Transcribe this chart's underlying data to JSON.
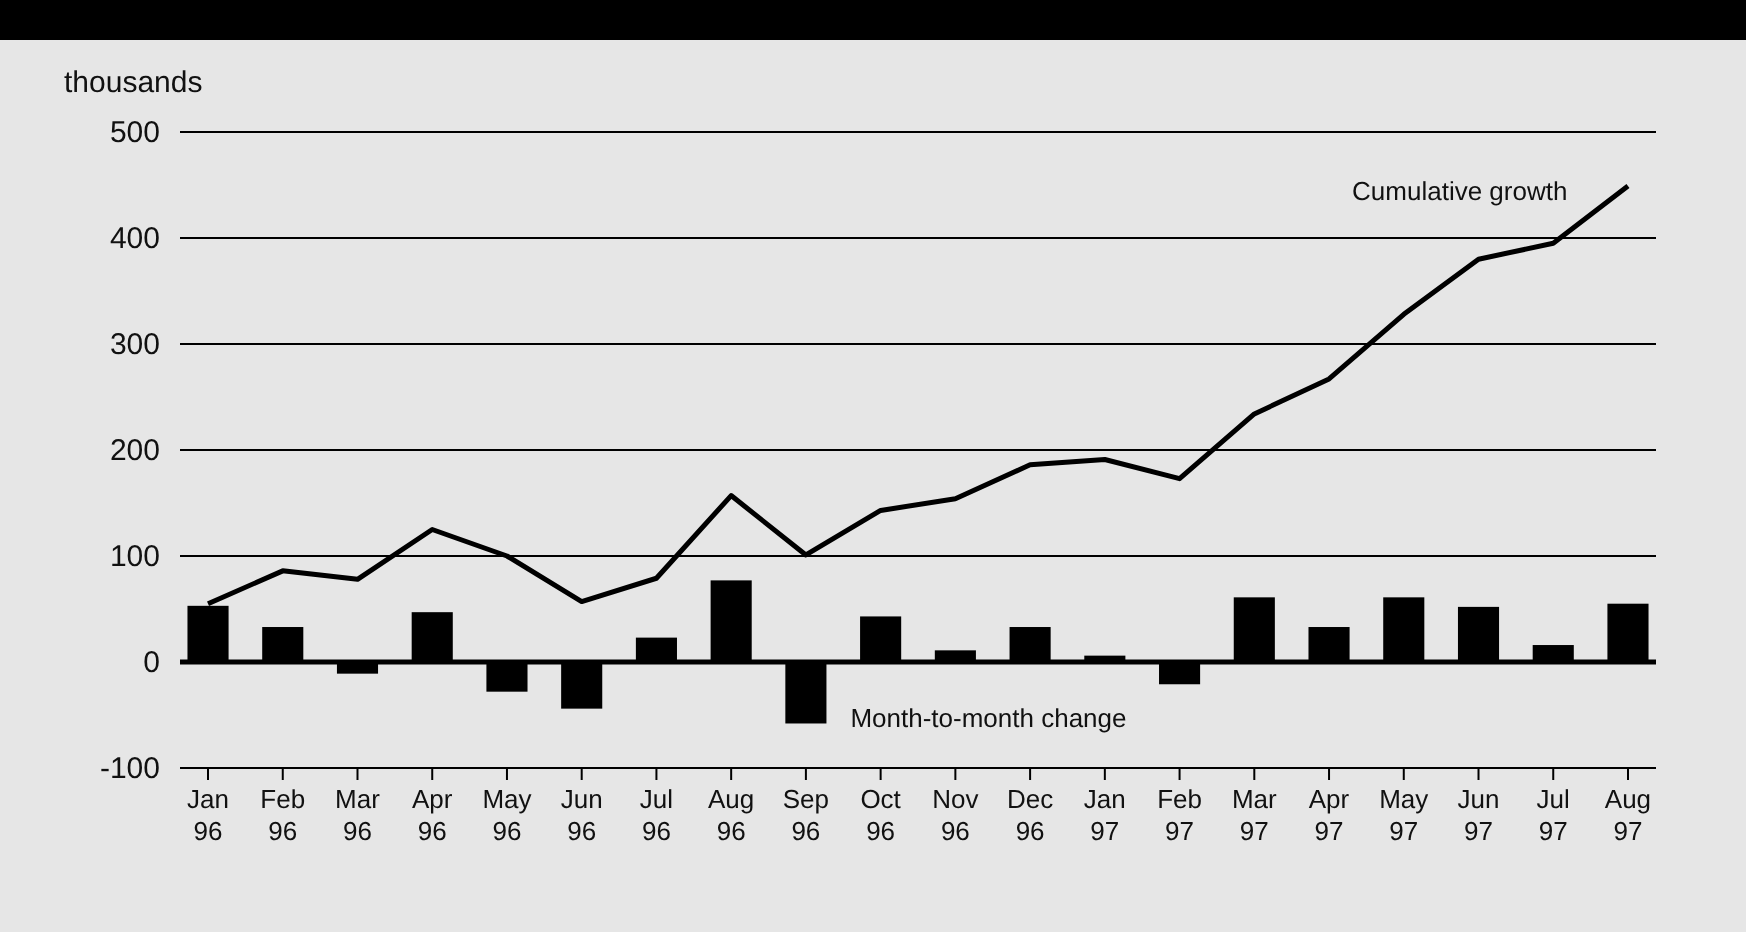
{
  "chart_data": {
    "type": "bar",
    "ylabel": "thousands",
    "categories": [
      "Jan 96",
      "Feb 96",
      "Mar 96",
      "Apr 96",
      "May 96",
      "Jun 96",
      "Jul 96",
      "Aug 96",
      "Sep 96",
      "Oct 96",
      "Nov 96",
      "Dec 96",
      "Jan 97",
      "Feb 97",
      "Mar 97",
      "Apr 97",
      "May 97",
      "Jun 97",
      "Jul 97",
      "Aug 97"
    ],
    "series": [
      {
        "name": "Month-to-month change",
        "color": "#000000",
        "values": [
          53,
          33,
          -11,
          47,
          -28,
          -44,
          23,
          77,
          -58,
          43,
          11,
          33,
          6,
          -21,
          61,
          33,
          61,
          52,
          16,
          55
        ]
      },
      {
        "name": "Cumulative growth",
        "type": "line",
        "color": "#000000",
        "values": [
          55,
          86,
          78,
          125,
          100,
          57,
          79,
          157,
          101,
          143,
          154,
          186,
          191,
          173,
          234,
          267,
          328,
          380,
          395,
          449
        ]
      }
    ],
    "ylim": [
      -100,
      500
    ],
    "yticks": [
      -100,
      0,
      100,
      200,
      300,
      400,
      500
    ],
    "grid": "y",
    "line_style": "solid",
    "marker": "none"
  }
}
